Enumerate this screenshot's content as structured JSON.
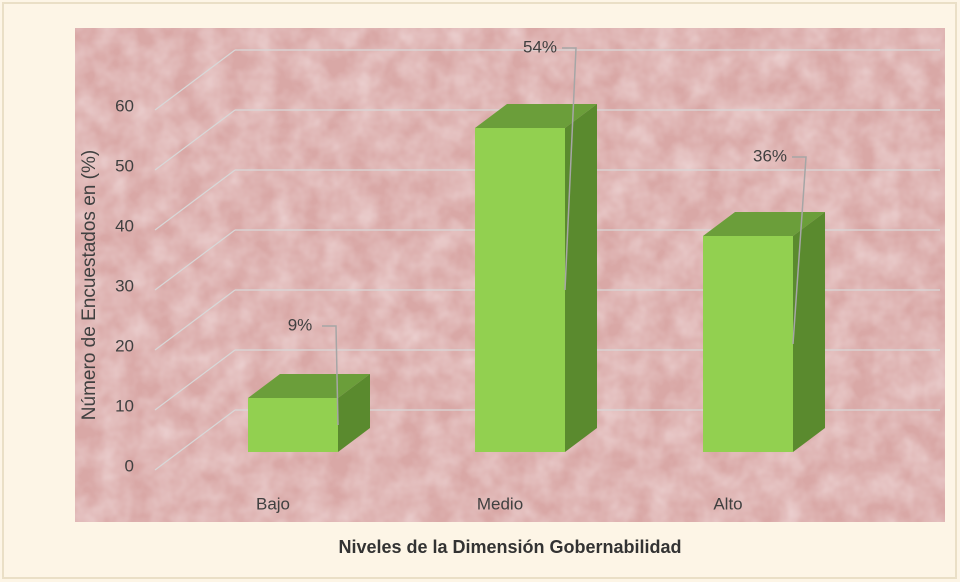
{
  "chart_data": {
    "type": "bar",
    "ylabel": "Número de Encuestados en (%)",
    "xlabel": "Niveles de la Dimensión Gobernabilidad",
    "categories": [
      "Bajo",
      "Medio",
      "Alto"
    ],
    "values": [
      9,
      54,
      36
    ],
    "value_labels": [
      "9%",
      "54%",
      "36%"
    ],
    "color": "#92d050",
    "ylim": [
      0,
      60
    ],
    "yticks": [
      0,
      10,
      20,
      30,
      40,
      50,
      60
    ],
    "grid": true
  }
}
